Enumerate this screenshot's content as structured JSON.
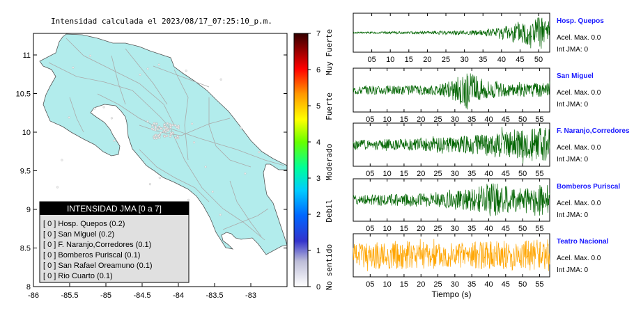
{
  "title": "Intensidad calculada el 2023/08/17_07:25:10_p.m.",
  "map": {
    "x_ticks": [
      "-86",
      "-85.5",
      "-85",
      "-84.5",
      "-84",
      "-83.5",
      "-83"
    ],
    "y_ticks": [
      "11",
      "10.5",
      "10",
      "9.5",
      "9",
      "8.5",
      "8"
    ],
    "fill_color": "#b2ecec"
  },
  "colorbar": {
    "ticks": [
      "0",
      "1",
      "2",
      "3",
      "4",
      "5",
      "6",
      "7"
    ],
    "labels": [
      "No sentido",
      "Debil",
      "Moderado",
      "Fuerte",
      "Muy Fuerte"
    ]
  },
  "legend": {
    "title": "INTENSIDAD JMA [0 a 7]",
    "items": [
      "[ 0 ]  Hosp. Quepos (0.2)",
      "[ 0 ]  San Miguel (0.2)",
      "[ 0 ]  F. Naranjo,Corredores (0.1)",
      "[ 0 ]  Bomberos Puriscal (0.1)",
      "[ 0 ]  San Rafael Oreamuno (0.1)",
      "[ 0 ]  Rio Cuarto (0.1)"
    ]
  },
  "chart_data": [
    {
      "type": "line",
      "station": "Hosp. Quepos",
      "accel_text": "Acel. Max. 0.0",
      "int_text": "Int JMA: 0",
      "color": "#006400",
      "x_ticks": [
        "05",
        "10",
        "15",
        "20",
        "25",
        "30",
        "35",
        "40",
        "45",
        "50"
      ],
      "xlim": [
        0,
        53
      ],
      "envelope": [
        [
          0,
          0.04
        ],
        [
          20,
          0.08
        ],
        [
          35,
          0.15
        ],
        [
          42,
          0.45
        ],
        [
          47,
          0.85
        ],
        [
          53,
          0.95
        ]
      ]
    },
    {
      "type": "line",
      "station": "San Miguel",
      "accel_text": "Acel. Max. 0.0",
      "int_text": "Int JMA: 0",
      "color": "#006400",
      "x_ticks": [
        "05",
        "10",
        "15",
        "20",
        "25",
        "30",
        "35",
        "40",
        "45",
        "50",
        "55"
      ],
      "xlim": [
        0,
        58
      ],
      "envelope": [
        [
          0,
          0.2
        ],
        [
          25,
          0.25
        ],
        [
          29,
          0.5
        ],
        [
          34,
          0.95
        ],
        [
          38,
          0.5
        ],
        [
          45,
          0.3
        ],
        [
          58,
          0.35
        ]
      ]
    },
    {
      "type": "line",
      "station": "F. Naranjo,Corredores",
      "accel_text": "Acel. Max. 0.0",
      "int_text": "Int JMA: 0",
      "color": "#006400",
      "x_ticks": [
        "05",
        "10",
        "15",
        "20",
        "25",
        "30",
        "35",
        "40",
        "45",
        "50",
        "55"
      ],
      "xlim": [
        0,
        58
      ],
      "envelope": [
        [
          0,
          0.25
        ],
        [
          20,
          0.3
        ],
        [
          35,
          0.45
        ],
        [
          45,
          0.75
        ],
        [
          58,
          0.85
        ]
      ]
    },
    {
      "type": "line",
      "station": "Bomberos Puriscal",
      "accel_text": "Acel. Max. 0.0",
      "int_text": "Int JMA: 0",
      "color": "#006400",
      "x_ticks": [
        "05",
        "10",
        "15",
        "20",
        "25",
        "30",
        "35",
        "40",
        "45",
        "50",
        "55"
      ],
      "xlim": [
        0,
        58
      ],
      "envelope": [
        [
          0,
          0.25
        ],
        [
          25,
          0.35
        ],
        [
          35,
          0.55
        ],
        [
          41,
          0.9
        ],
        [
          48,
          0.6
        ],
        [
          55,
          0.85
        ],
        [
          58,
          0.6
        ]
      ]
    },
    {
      "type": "line",
      "station": "Teatro Nacional",
      "accel_text": "Acel. Max. 0.0",
      "int_text": "Int JMA: 0",
      "color": "#ffa500",
      "x_ticks": [
        "05",
        "10",
        "15",
        "20",
        "25",
        "30",
        "35",
        "40",
        "45",
        "50",
        "55"
      ],
      "xlim": [
        0,
        58
      ],
      "xlabel": "Tiempo (s)",
      "envelope": [
        [
          0,
          0.55
        ],
        [
          10,
          0.75
        ],
        [
          30,
          0.65
        ],
        [
          58,
          0.8
        ]
      ]
    }
  ]
}
